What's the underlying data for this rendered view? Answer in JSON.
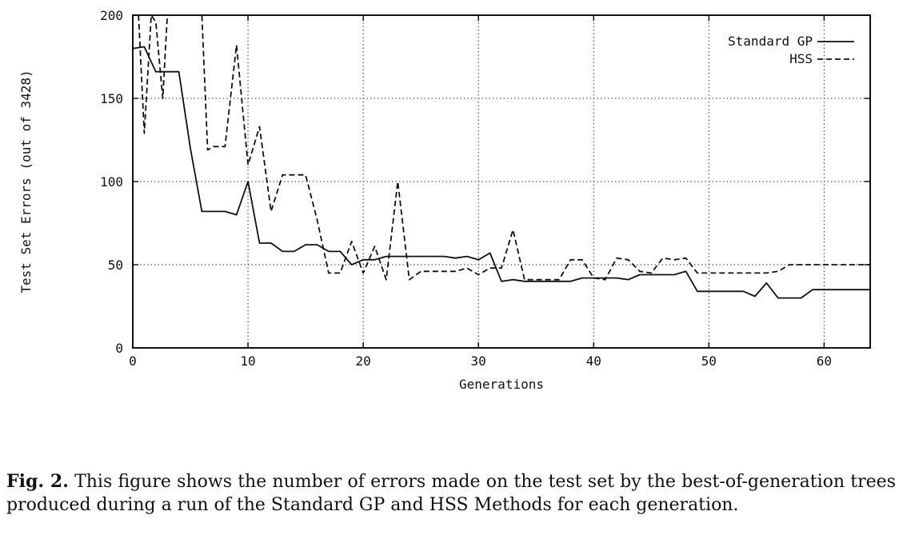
{
  "chart_data": {
    "type": "line",
    "xlabel": "Generations",
    "ylabel": "Test Set Errors (out of 3428)",
    "xlim": [
      0,
      64
    ],
    "ylim": [
      0,
      200
    ],
    "xticks": [
      0,
      10,
      20,
      30,
      40,
      50,
      60
    ],
    "yticks": [
      0,
      50,
      100,
      150,
      200
    ],
    "grid": true,
    "legend_position": "top-right",
    "series": [
      {
        "name": "Standard GP",
        "style": "solid",
        "color": "#111111",
        "x": [
          0,
          1,
          2,
          3,
          4,
          5,
          6,
          7,
          8,
          9,
          10,
          11,
          12,
          13,
          14,
          15,
          16,
          17,
          18,
          19,
          20,
          21,
          22,
          23,
          24,
          25,
          26,
          27,
          28,
          29,
          30,
          31,
          32,
          33,
          34,
          35,
          36,
          37,
          38,
          39,
          40,
          41,
          42,
          43,
          44,
          45,
          46,
          47,
          48,
          49,
          50,
          51,
          52,
          53,
          54,
          55,
          56,
          57,
          58,
          59,
          60,
          61,
          62,
          63,
          64
        ],
        "y": [
          180,
          181,
          166,
          166,
          166,
          120,
          82,
          82,
          82,
          80,
          100,
          63,
          63,
          58,
          58,
          62,
          62,
          58,
          58,
          50,
          53,
          53,
          55,
          55,
          55,
          55,
          55,
          55,
          54,
          55,
          53,
          57,
          40,
          41,
          40,
          40,
          40,
          40,
          40,
          42,
          42,
          42,
          42,
          41,
          44,
          44,
          44,
          44,
          46,
          34,
          34,
          34,
          34,
          34,
          31,
          39,
          30,
          30,
          30,
          35,
          35,
          35,
          35,
          35,
          35
        ]
      },
      {
        "name": "HSS",
        "style": "dashed",
        "color": "#111111",
        "x": [
          0.5,
          1,
          1.6,
          2,
          2.6,
          3,
          3.3,
          6,
          6.5,
          7,
          8,
          9,
          10,
          11,
          12,
          13,
          14,
          15,
          16,
          17,
          18,
          19,
          20,
          21,
          22,
          23,
          24,
          25,
          26,
          27,
          28,
          29,
          30,
          31,
          32,
          33,
          34,
          35,
          36,
          37,
          38,
          39,
          40,
          41,
          42,
          43,
          44,
          45,
          46,
          47,
          48,
          49,
          50,
          51,
          52,
          53,
          54,
          55,
          56,
          57,
          58,
          59,
          60,
          61,
          62,
          63,
          64
        ],
        "y": [
          200,
          129,
          200,
          196,
          150,
          200,
          200,
          200,
          119,
          121,
          121,
          182,
          110,
          133,
          82,
          104,
          104,
          104,
          77,
          45,
          45,
          64,
          45,
          61,
          41,
          100,
          41,
          46,
          46,
          46,
          46,
          48,
          44,
          48,
          48,
          71,
          41,
          41,
          41,
          41,
          53,
          53,
          42,
          41,
          54,
          53,
          46,
          45,
          54,
          53,
          54,
          45,
          45,
          45,
          45,
          45,
          45,
          45,
          46,
          50,
          50,
          50,
          50,
          50,
          50,
          50,
          50
        ]
      }
    ]
  },
  "legend": {
    "standard_gp": "Standard GP",
    "hss": "HSS"
  },
  "caption": {
    "label": "Fig. 2.",
    "text": "This figure shows the number of errors made on the test set by the best-of-generation trees produced during a run of the Standard GP and HSS Methods for each generation."
  }
}
